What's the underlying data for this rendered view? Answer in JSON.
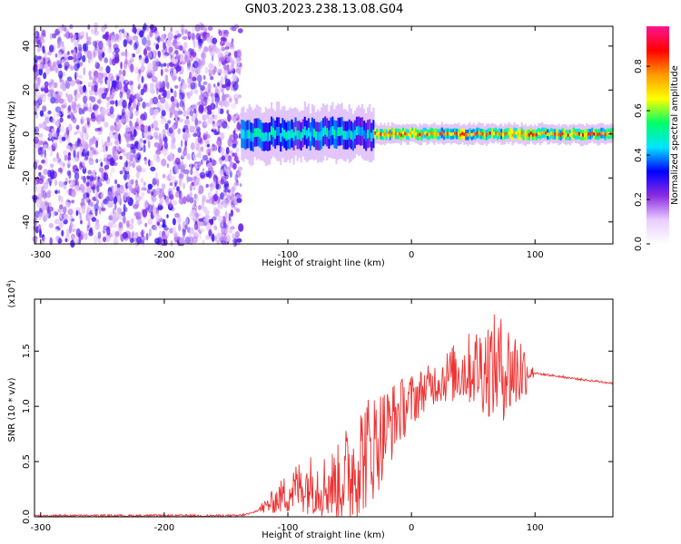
{
  "figure": {
    "title": "GN03.2023.238.13.08.G04"
  },
  "chart_data": [
    {
      "type": "heatmap",
      "xlabel": "Height of straight line (km)",
      "ylabel": "Frequency (Hz)",
      "xlim": [
        -305,
        163
      ],
      "ylim": [
        -50,
        49
      ],
      "x_ticks": [
        -300,
        -200,
        -100,
        0,
        100
      ],
      "y_ticks": [
        -40,
        -20,
        0,
        20,
        40
      ],
      "colorbar": {
        "label": "Normalized spectral amplitude",
        "range": [
          0,
          0.98
        ],
        "ticks": [
          0.0,
          0.2,
          0.4,
          0.6,
          0.8
        ],
        "colormap": [
          "#ffffff",
          "#e8ccff",
          "#8a2be2",
          "#0000ff",
          "#00e5ff",
          "#00ff66",
          "#ffff00",
          "#ff9900",
          "#ff0000",
          "#ff1493"
        ]
      },
      "regions": [
        {
          "x_range": [
            -305,
            -138
          ],
          "description_level": 0.1,
          "extent": "full-band noise"
        },
        {
          "x_range": [
            -138,
            -30
          ],
          "center_hz": 0,
          "halfwidth_hz": 8,
          "level": 0.45
        },
        {
          "x_range": [
            -30,
            163
          ],
          "center_hz": 0,
          "halfwidth_hz": 3,
          "level": 0.75
        }
      ]
    },
    {
      "type": "line",
      "xlabel": "Height of straight line (km)",
      "ylabel": "SNR (10 * v/v)",
      "y_multiplier": "(x10",
      "y_multiplier_exp": "4",
      "y_multiplier_close": ")",
      "xlim": [
        -305,
        163
      ],
      "ylim": [
        0,
        1.97
      ],
      "x_ticks": [
        -300,
        -200,
        -100,
        0,
        100
      ],
      "y_ticks": [
        0.0,
        0.5,
        1.0,
        1.5
      ],
      "line_color": "#ee3333",
      "series": [
        {
          "x": [
            -305,
            -200,
            -140,
            -130,
            -120,
            -110,
            -100,
            -90,
            -80,
            -70,
            -60,
            -50,
            -40,
            -30,
            -20,
            -10,
            0,
            10,
            20,
            30,
            40,
            50,
            60,
            70,
            80,
            90,
            95,
            100,
            120,
            140,
            163
          ],
          "y": [
            0.01,
            0.01,
            0.01,
            0.03,
            0.08,
            0.15,
            0.22,
            0.28,
            0.3,
            0.28,
            0.3,
            0.4,
            0.55,
            0.65,
            0.8,
            0.95,
            1.05,
            1.15,
            1.22,
            1.28,
            1.32,
            1.35,
            1.36,
            1.35,
            1.33,
            1.32,
            1.31,
            1.3,
            1.27,
            1.24,
            1.21
          ],
          "noise_envelope": [
            0,
            0,
            0,
            0.03,
            0.06,
            0.12,
            0.2,
            0.25,
            0.28,
            0.3,
            0.35,
            0.5,
            0.55,
            0.5,
            0.4,
            0.3,
            0.25,
            0.2,
            0.2,
            0.25,
            0.3,
            0.35,
            0.45,
            0.5,
            0.45,
            0.35,
            0.1,
            0.03,
            0.02,
            0.02,
            0.02
          ]
        }
      ]
    }
  ]
}
